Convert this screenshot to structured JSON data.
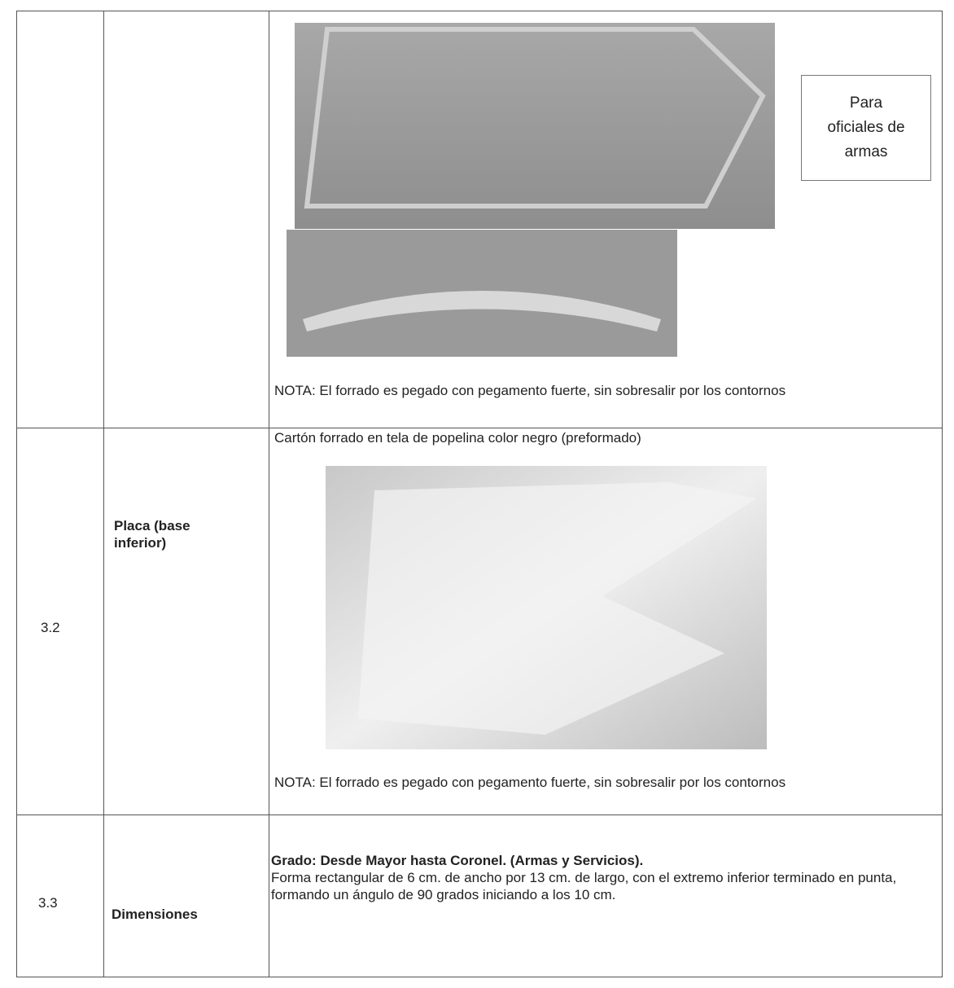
{
  "table": {
    "rows": [
      {
        "box_text": "Para oficiales de armas",
        "note": "NOTA: El forrado es pegado con pegamento fuerte, sin sobresalir por los contornos"
      },
      {
        "number": "3.2",
        "label": "Placa (base inferior)",
        "caption": "Cartón forrado en tela de popelina color negro (preformado)",
        "note": "NOTA: El forrado es pegado con pegamento fuerte, sin sobresalir por los contornos"
      },
      {
        "number": "3.3",
        "label": "Dimensiones",
        "grade": "Grado: Desde Mayor hasta Coronel. (Armas y Servicios).",
        "description": "Forma rectangular de 6 cm. de ancho por 13 cm. de largo, con el extremo inferior terminado en punta, formando un ángulo de 90 grados iniciando a los 10 cm."
      }
    ]
  }
}
